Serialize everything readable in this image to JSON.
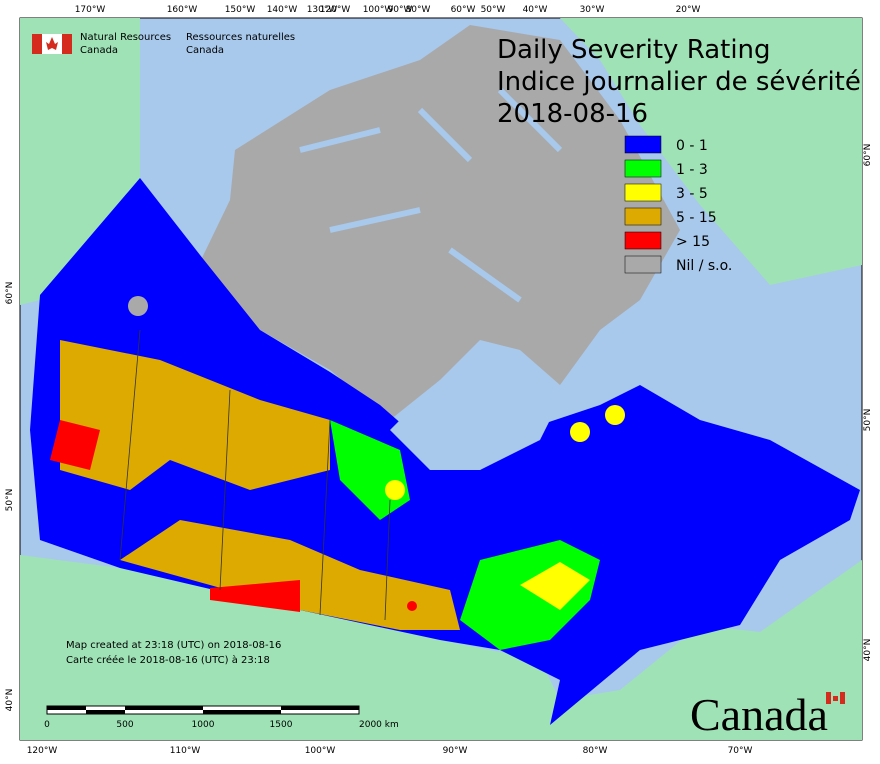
{
  "header": {
    "dept_en": [
      "Natural Resources",
      "Canada"
    ],
    "dept_fr": [
      "Ressources naturelles",
      "Canada"
    ]
  },
  "title": [
    "Daily Severity Rating",
    "Indice journalier de sévérité",
    "2018-08-16"
  ],
  "legend": [
    {
      "label": "0 - 1",
      "color": "#0000ff"
    },
    {
      "label": "1 - 3",
      "color": "#00ff00"
    },
    {
      "label": "3 - 5",
      "color": "#ffff00"
    },
    {
      "label": "5 - 15",
      "color": "#dcaa00"
    },
    {
      "label": "> 15",
      "color": "#ff0000"
    },
    {
      "label": "Nil / s.o.",
      "color": "#a9a9a9"
    }
  ],
  "graticule": {
    "top": [
      "170°W",
      "160°W",
      "150°W",
      "140°W",
      "130°W",
      "120°W",
      "100°W",
      "90°W",
      "80°W",
      "60°W",
      "50°W",
      "40°W",
      "30°W",
      "20°W"
    ],
    "bottom": [
      "120°W",
      "110°W",
      "100°W",
      "90°W",
      "80°W",
      "70°W"
    ],
    "left": [
      "60°N",
      "50°N",
      "40°N"
    ],
    "right": [
      "60°N",
      "50°N",
      "40°N"
    ]
  },
  "footnote": [
    "Map created at 23:18 (UTC) on 2018-08-16",
    "Carte créée le 2018-08-16 (UTC) à 23:18"
  ],
  "scale": [
    "0",
    "500",
    "1000",
    "1500",
    "2000  km"
  ],
  "wordmark": "Canada"
}
